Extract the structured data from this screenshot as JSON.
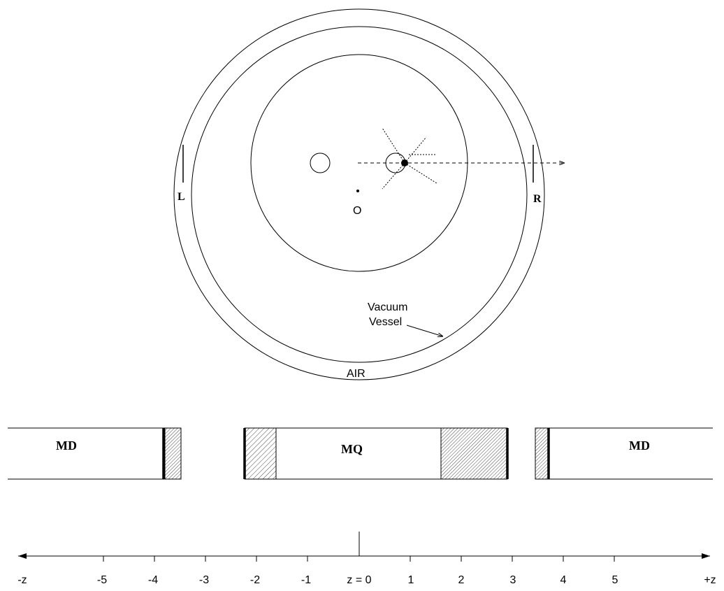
{
  "top_view": {
    "label_left": "L",
    "label_right": "R",
    "label_origin": "O",
    "label_vessel_line1": "Vacuum",
    "label_vessel_line2": "Vessel",
    "label_air": "AIR"
  },
  "side_view": {
    "label_left_magnet": "MD",
    "label_center_magnet": "MQ",
    "label_right_magnet": "MD"
  },
  "axis": {
    "tick_labels": [
      "-z",
      "-5",
      "-4",
      "-3",
      "-2",
      "-1",
      "z = 0",
      "1",
      "2",
      "3",
      "4",
      "5",
      "+z"
    ]
  },
  "colors": {
    "stroke": "#000000",
    "background": "#ffffff"
  }
}
